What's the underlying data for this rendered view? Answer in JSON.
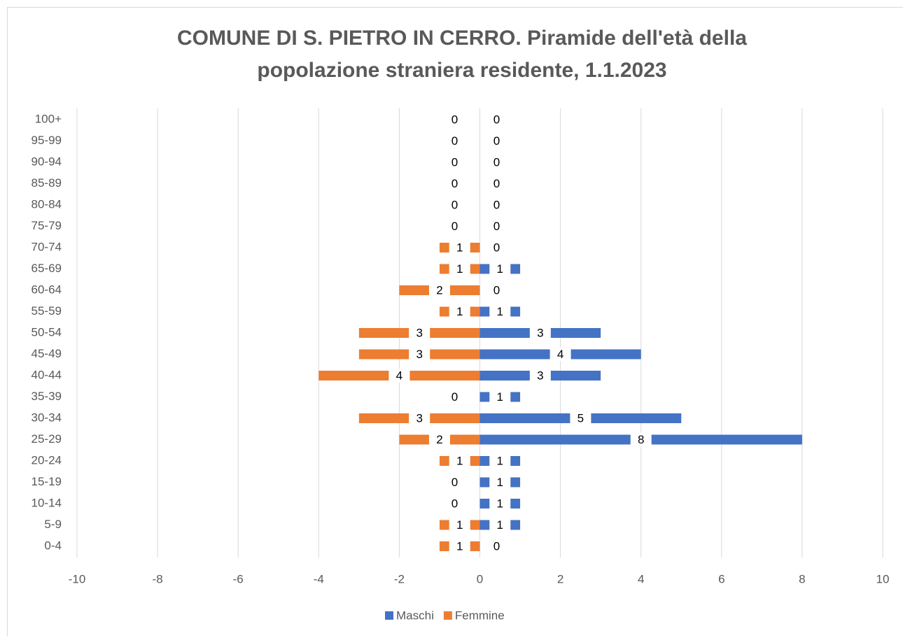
{
  "chart_data": {
    "type": "bar",
    "orientation": "horizontal",
    "title": [
      "COMUNE DI S. PIETRO IN CERRO. Piramide dell'età della",
      "popolazione straniera residente, 1.1.2023"
    ],
    "categories": [
      "0-4",
      "5-9",
      "10-14",
      "15-19",
      "20-24",
      "25-29",
      "30-34",
      "35-39",
      "40-44",
      "45-49",
      "50-54",
      "55-59",
      "60-64",
      "65-69",
      "70-74",
      "75-79",
      "80-84",
      "85-89",
      "90-94",
      "95-99",
      "100+"
    ],
    "series": [
      {
        "name": "Maschi",
        "color": "#4472c4",
        "values": [
          0,
          1,
          1,
          1,
          1,
          8,
          5,
          1,
          3,
          4,
          3,
          1,
          0,
          1,
          0,
          0,
          0,
          0,
          0,
          0,
          0
        ]
      },
      {
        "name": "Femmine",
        "color": "#ed7d31",
        "values": [
          -1,
          -1,
          0,
          0,
          -1,
          -2,
          -3,
          0,
          -4,
          -3,
          -3,
          -1,
          -2,
          -1,
          -1,
          0,
          0,
          0,
          0,
          0,
          0
        ],
        "value_labels": [
          "1",
          "1",
          "0",
          "0",
          "1",
          "2",
          "3",
          "0",
          "4",
          "3",
          "3",
          "1",
          "2",
          "1",
          "1",
          "0",
          "0",
          "0",
          "0",
          "0",
          "0"
        ]
      }
    ],
    "xlim": [
      -10,
      10
    ],
    "xticks": [
      -10,
      -8,
      -6,
      -4,
      -2,
      0,
      2,
      4,
      6,
      8,
      10
    ],
    "grid": true,
    "legend": "bottom"
  }
}
